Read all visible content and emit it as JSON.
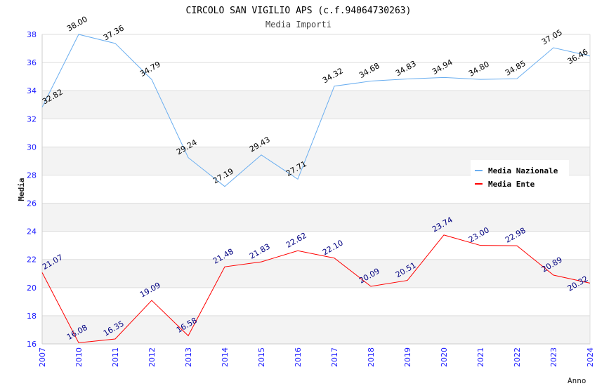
{
  "chart_data": {
    "type": "line",
    "title": "CIRCOLO SAN VIGILIO APS (c.f.94064730263)",
    "subtitle": "Media Importi",
    "xlabel": "Anno",
    "ylabel": "Media",
    "ylim": [
      16,
      38
    ],
    "yticks": [
      "16",
      "18",
      "20",
      "22",
      "24",
      "26",
      "28",
      "30",
      "32",
      "34",
      "36",
      "38"
    ],
    "categories": [
      "2007",
      "2010",
      "2011",
      "2012",
      "2013",
      "2014",
      "2015",
      "2016",
      "2017",
      "2018",
      "2019",
      "2020",
      "2021",
      "2022",
      "2023",
      "2024"
    ],
    "legend_position": "top-right",
    "series": [
      {
        "name": "Media Nazionale",
        "color": "#6aaef0",
        "label_color": "#000000",
        "values": [
          32.82,
          38.0,
          37.36,
          34.79,
          29.24,
          27.19,
          29.43,
          27.71,
          34.32,
          34.68,
          34.83,
          34.94,
          34.8,
          34.85,
          37.05,
          36.46
        ]
      },
      {
        "name": "Media Ente",
        "color": "#ff0000",
        "label_color": "#000080",
        "values": [
          21.07,
          16.08,
          16.35,
          19.09,
          16.58,
          21.48,
          21.83,
          22.62,
          22.1,
          20.09,
          20.51,
          23.74,
          23.0,
          22.98,
          20.89,
          20.32
        ]
      }
    ]
  }
}
